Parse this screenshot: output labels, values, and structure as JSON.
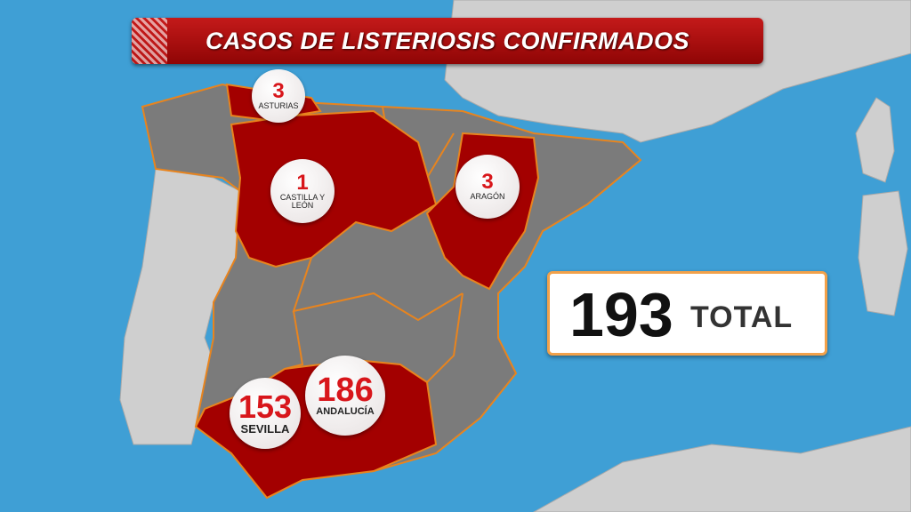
{
  "title": "CASOS DE LISTERIOSIS CONFIRMADOS",
  "regions": [
    {
      "count": 3,
      "name": "ASTURIAS"
    },
    {
      "count": 1,
      "name": "CASTILLA Y LEÓN"
    },
    {
      "count": 3,
      "name": "ARAGÓN"
    },
    {
      "count": 186,
      "name": "ANDALUCÍA"
    },
    {
      "count": 153,
      "name": "SEVILLA"
    }
  ],
  "total": {
    "value": 193,
    "label": "TOTAL"
  }
}
